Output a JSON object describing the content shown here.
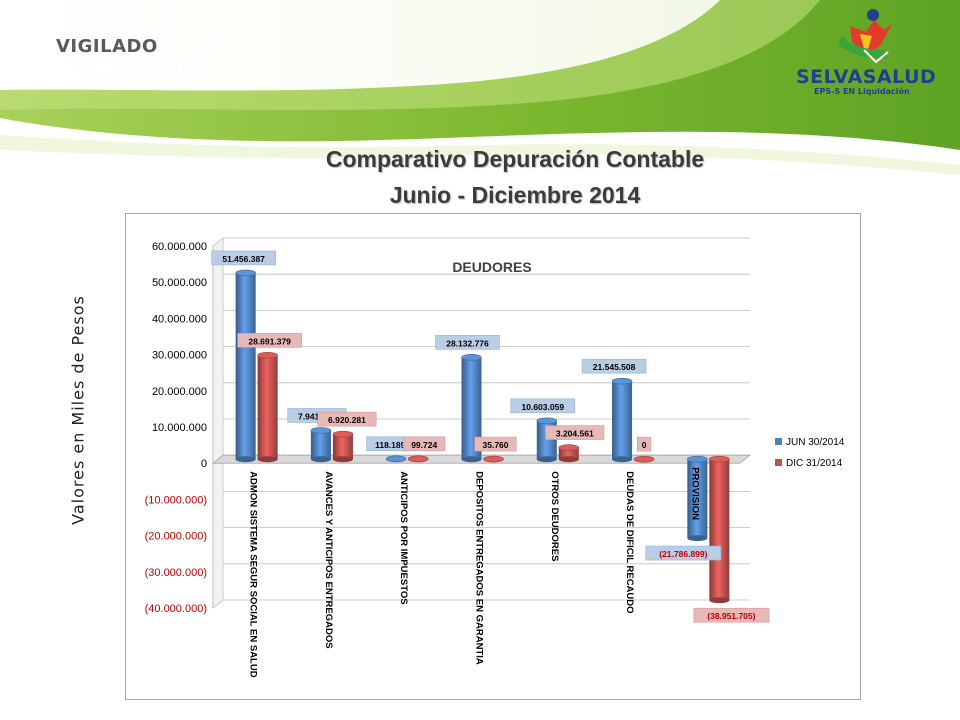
{
  "header": {
    "left_logo": {
      "line1": "VIGILADO",
      "line2": "Supersalud"
    },
    "right_logo": {
      "name": "SELVASALUD",
      "subtitle": "EPS-S EN Liquidación"
    }
  },
  "title": {
    "line1": "Comparativo Depuración Contable",
    "line2": "Junio - Diciembre 2014"
  },
  "side_label": "Valores  en Miles de Pesos",
  "colors": {
    "jun": "#4f81bd",
    "dic": "#c0504d",
    "header_green": "#8cc63f"
  },
  "chart_data": {
    "type": "bar",
    "title": "DEUDORES",
    "ylabel": "Valores  en Miles de Pesos",
    "ylim": [
      -40000000,
      60000000
    ],
    "yticks": [
      {
        "value": 60000000,
        "label": "60.000.000"
      },
      {
        "value": 50000000,
        "label": "50.000.000"
      },
      {
        "value": 40000000,
        "label": "40.000.000"
      },
      {
        "value": 30000000,
        "label": "30.000.000"
      },
      {
        "value": 20000000,
        "label": "20.000.000"
      },
      {
        "value": 10000000,
        "label": "10.000.000"
      },
      {
        "value": 0,
        "label": "0"
      },
      {
        "value": -10000000,
        "label": "(10.000.000)"
      },
      {
        "value": -20000000,
        "label": "(20.000.000)"
      },
      {
        "value": -30000000,
        "label": "(30.000.000)"
      },
      {
        "value": -40000000,
        "label": "(40.000.000)"
      }
    ],
    "categories": [
      "ADMON SISTEMA SEGUR SOCIAL EN SALUD",
      "AVANCES Y ANTICIPOS ENTREGADOS",
      "ANTICIPOS POR IMPUESTOS",
      "DEPOSITOS ENTREGADOS EN GARANTIA",
      "OTROS DEUDORES",
      "DEUDAS DE DIFICIL RECAUDO",
      "PROVISION"
    ],
    "series": [
      {
        "name": "JUN 30/2014",
        "color": "#4f81bd",
        "values": [
          51456387,
          7941654,
          118189,
          28132776,
          10603059,
          21545508,
          -21786899
        ],
        "labels": [
          "51.456.387",
          "7.941.654",
          "118.189",
          "28.132.776",
          "10.603.059",
          "21.545.508",
          "(21.786.899)"
        ]
      },
      {
        "name": "DIC 31/2014",
        "color": "#c0504d",
        "values": [
          28691379,
          6920281,
          99724,
          35760,
          3204561,
          0,
          -38951705
        ],
        "labels": [
          "28.691.379",
          "6.920.281",
          "99.724",
          "35.760",
          "3.204.561",
          "0",
          "(38.951.705)"
        ]
      }
    ],
    "grid": true,
    "legend_position": "right"
  }
}
